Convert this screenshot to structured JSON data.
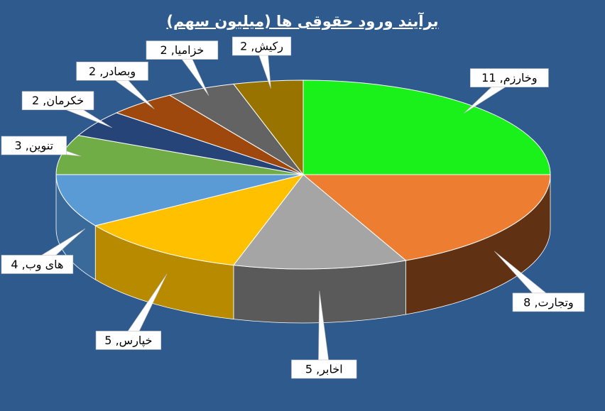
{
  "chart_data": {
    "type": "pie",
    "title": "برآیند ورود حقوقی ها (میلیون سهم)",
    "slices": [
      {
        "label": "وخارزم",
        "value": 11,
        "color": "#1AF01A",
        "side": "#118a11"
      },
      {
        "label": "وتجارت",
        "value": 8,
        "color": "#ED7D31",
        "side": "#613114"
      },
      {
        "label": "اخابر",
        "value": 5,
        "color": "#A5A5A5",
        "side": "#5a5a5a"
      },
      {
        "label": "خپارس",
        "value": 5,
        "color": "#FFC000",
        "side": "#B88A00"
      },
      {
        "label": "های وب",
        "value": 4,
        "color": "#5B9BD5",
        "side": "#3a6a99"
      },
      {
        "label": "تنوین",
        "value": 3,
        "color": "#70AD47",
        "side": "#4a7a2e"
      },
      {
        "label": "خکرمان",
        "value": 2,
        "color": "#264478",
        "side": "#16294a"
      },
      {
        "label": "وبصادر",
        "value": 2,
        "color": "#9E480E",
        "side": "#5e2a08"
      },
      {
        "label": "خزامیا",
        "value": 2,
        "color": "#636363",
        "side": "#3a3a3a"
      },
      {
        "label": "رکیش",
        "value": 2,
        "color": "#997300",
        "side": "#5c4500"
      }
    ],
    "legend": "none"
  }
}
